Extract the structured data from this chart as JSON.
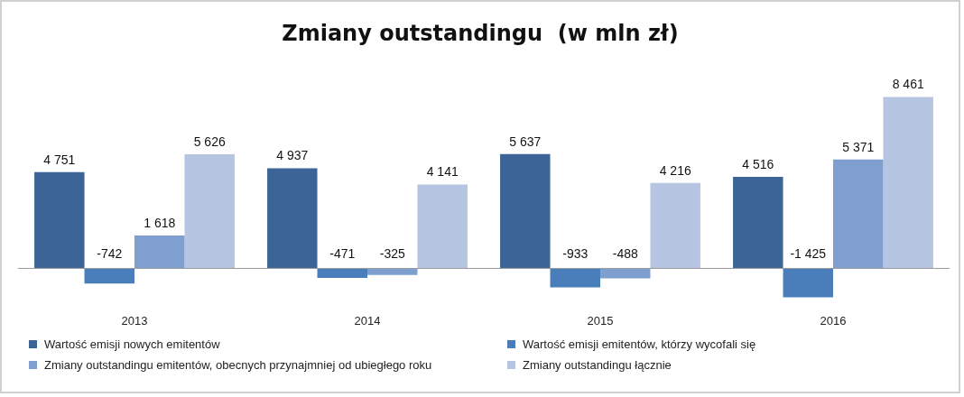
{
  "chart_data": {
    "type": "bar",
    "title": "Zmiany outstandingu  (w mln zł)",
    "categories": [
      "2013",
      "2014",
      "2015",
      "2016"
    ],
    "series": [
      {
        "name": "Wartość emisji nowych emitentów",
        "color": "#3d6496",
        "values": [
          4751,
          4937,
          5637,
          4516
        ],
        "value_labels": [
          "4 751",
          "4 937",
          "5 637",
          "4 516"
        ]
      },
      {
        "name": "Wartość emisji emitentów, którzy wycofali się",
        "color": "#4a7ebb",
        "values": [
          -742,
          -471,
          -933,
          -1425
        ],
        "value_labels": [
          "-742",
          "-471",
          "-933",
          "-1 425"
        ]
      },
      {
        "name": "Zmiany outstandingu emitentów, obecnych przynajmniej od ubiegłego roku",
        "color": "#7e9fd0",
        "values": [
          1618,
          -325,
          -488,
          5371
        ],
        "value_labels": [
          "1 618",
          "-325",
          "-488",
          "5 371"
        ]
      },
      {
        "name": "Zmiany outstandingu łącznie",
        "color": "#b6c5e1",
        "values": [
          5626,
          4141,
          4216,
          8461
        ],
        "value_labels": [
          "5 626",
          "4 141",
          "4 216",
          "8 461"
        ]
      }
    ],
    "legend": "bottom",
    "grid": false
  }
}
